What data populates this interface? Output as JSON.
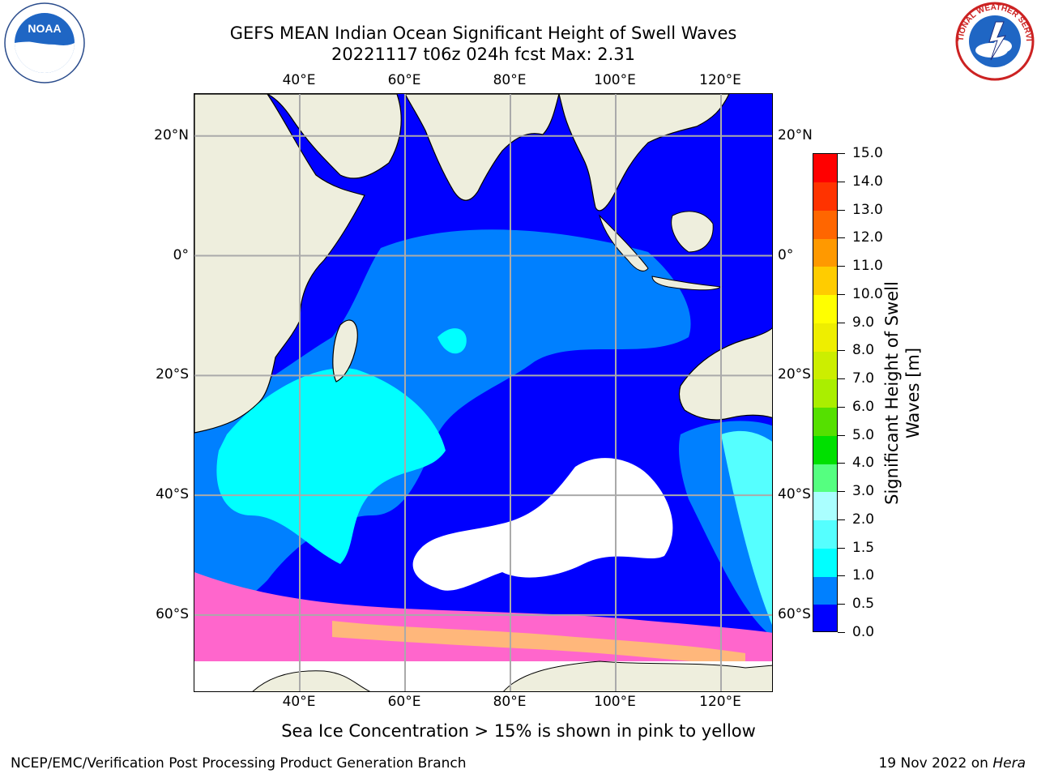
{
  "title_line1": "GEFS MEAN Indian Ocean Significant Height of Swell Waves",
  "title_line2": "20221117 t06z 024h fcst   Max: 2.31",
  "logos": {
    "left": "noaa-logo",
    "right": "nws-logo",
    "left_text": "NOAA",
    "right_text": "NATIONAL WEATHER SERVICE"
  },
  "map": {
    "projection": "PlateCarree",
    "lon_range": [
      20,
      130
    ],
    "lat_range": [
      -73,
      27
    ],
    "lon_ticks": [
      {
        "value": 40,
        "label": "40°E"
      },
      {
        "value": 60,
        "label": "60°E"
      },
      {
        "value": 80,
        "label": "80°E"
      },
      {
        "value": 100,
        "label": "100°E"
      },
      {
        "value": 120,
        "label": "120°E"
      }
    ],
    "lat_ticks": [
      {
        "value": 20,
        "label": "20°N"
      },
      {
        "value": 0,
        "label": "0°"
      },
      {
        "value": -20,
        "label": "20°S"
      },
      {
        "value": -40,
        "label": "40°S"
      },
      {
        "value": -60,
        "label": "60°S"
      }
    ],
    "gridlines": true,
    "land_color": "#eeeedd",
    "gridline_color": "#aaaaaa"
  },
  "colorbar": {
    "label": "Significant Height of Swell Waves [m]",
    "label_line1": "Significant Height of Swell",
    "label_line2": "Waves [m]",
    "bounds": [
      0.0,
      0.5,
      1.0,
      1.5,
      2.0,
      3.0,
      4.0,
      5.0,
      6.0,
      7.0,
      8.0,
      9.0,
      10.0,
      11.0,
      12.0,
      13.0,
      14.0,
      15.0
    ],
    "tick_labels": [
      "0.0",
      "0.5",
      "1.0",
      "1.5",
      "2.0",
      "3.0",
      "4.0",
      "5.0",
      "6.0",
      "7.0",
      "8.0",
      "9.0",
      "10.0",
      "11.0",
      "12.0",
      "13.0",
      "14.0",
      "15.0"
    ],
    "colors": [
      "#0000ff",
      "#0080ff",
      "#00ffff",
      "#55ffff",
      "#aaffff",
      "#55ff80",
      "#00e000",
      "#55e000",
      "#aaee00",
      "#ccee00",
      "#eeee00",
      "#ffff00",
      "#ffcc00",
      "#ff9900",
      "#ff6600",
      "#ff3300",
      "#ff0000"
    ]
  },
  "footnote": "Sea Ice Concentration > 15% is shown in pink to yellow",
  "credit": "NCEP/EMC/Verification Post Processing Product Generation Branch",
  "date_prefix": "19 Nov 2022 on ",
  "date_machine": "Hera"
}
